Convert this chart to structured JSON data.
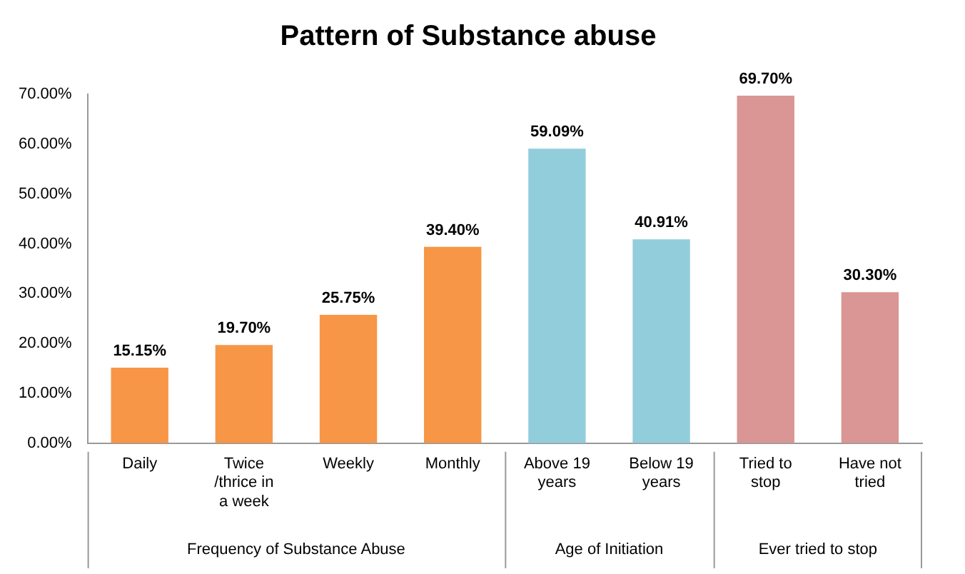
{
  "chart_data": {
    "type": "bar",
    "title": "Pattern of Substance abuse",
    "categories": [
      "Daily",
      "Twice /thrice in a week",
      "Weekly",
      "Monthly",
      "Above 19 years",
      "Below 19 years",
      "Tried to stop",
      "Have not tried"
    ],
    "values": [
      15.15,
      19.7,
      25.75,
      39.4,
      59.09,
      40.91,
      69.7,
      30.3
    ],
    "colors": [
      "#f79646",
      "#f79646",
      "#f79646",
      "#f79646",
      "#92cddc",
      "#92cddc",
      "#d99694",
      "#d99694"
    ],
    "value_labels": [
      "15.15%",
      "19.70%",
      "25.75%",
      "39.40%",
      "59.09%",
      "40.91%",
      "69.70%",
      "30.30%"
    ],
    "ylim": [
      0,
      70
    ],
    "yticks": [
      {
        "value": 0,
        "label": "0.00%"
      },
      {
        "value": 10,
        "label": "10.00%"
      },
      {
        "value": 20,
        "label": "20.00%"
      },
      {
        "value": 30,
        "label": "30.00%"
      },
      {
        "value": 40,
        "label": "40.00%"
      },
      {
        "value": 50,
        "label": "50.00%"
      },
      {
        "value": 60,
        "label": "60.00%"
      },
      {
        "value": 70,
        "label": "70.00%"
      }
    ],
    "annotations": [
      "Frequency of Substance Abuse",
      "Age of Initiation",
      "Ever tried to stop"
    ],
    "grid": false,
    "legend": false
  }
}
